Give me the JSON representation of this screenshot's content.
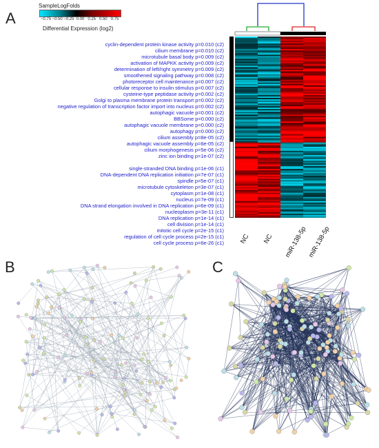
{
  "panels": {
    "a": "A",
    "b": "B",
    "c": "C"
  },
  "legend": {
    "title": "SampleLogFolds",
    "ticks": [
      "−0.75",
      "−0.50",
      "−0.25",
      "0.00",
      "0.25",
      "0.50",
      "0.75"
    ],
    "xlabel": "Differential Expression (log2)"
  },
  "terms_c2": [
    "cyclin-dependent protein kinase activity p=0.010 (c2)",
    "cilium membrane p=0.010 (c2)",
    "microtubule basal body p=0.009 (c2)",
    "activation of MAPKK activity p=0.009 (c2)",
    "determination of left/right symmetry p=0.009 (c2)",
    "smoothened signaling pathway p=0.008 (c2)",
    "photoreceptor cell maintenance p=0.007 (c2)",
    "cellular response to insulin stimulus p=0.007 (c2)",
    "cysteine-type peptidase activity p=0.002 (c2)",
    "Golgi to plasma membrane protein transport p=0.002 (c2)",
    "negative regulation of transcription factor import into nucleus p=0.002 (c2)",
    "autophagic vacuole p=0.001 (c2)",
    "BBSome p=0.000 (c2)",
    "autophagic vacuole membrane p=0.000 (c2)",
    "autophagy p=0.000 (c2)",
    "cilium assembly p=8e-05 (c2)",
    "autophagic vacuole assembly p=6e-05 (c2)",
    "cilium morphogenesis p=5e-06 (c2)",
    "zinc ion binding p=1e-07 (c2)"
  ],
  "terms_c1": [
    "single-stranded DNA binding p=1e-06 (c1)",
    "DNA-dependent DNA replication initiation p=7e-07 (c1)",
    "spindle p=5e-07 (c1)",
    "microtubule cytoskeleton p=3e-07 (c1)",
    "cytoplasm p=1e-08 (c1)",
    "nucleus p=7e-09 (c1)",
    "DNA strand elongation involved in DNA replication p=6e-09 (c1)",
    "nucleoplasm p=3e-11 (c1)",
    "DNA replication p=1e-14 (c1)",
    "cell division p=1e-14 (c1)",
    "mitotic cell cycle p=2e-15 (c1)",
    "regulation of cell cycle process p=2e-15 (c1)",
    "cell cycle process p=6e-26 (c1)"
  ],
  "columns": [
    "NC",
    "NC",
    "miR-138-5p",
    "miR-138-5p"
  ],
  "colors": {
    "term_text": "#2222cc",
    "cluster_c2_bar": "#000000",
    "dendro_top": "#2233cc",
    "dendro_nc": "#22aa33",
    "dendro_mir": "#dd2222",
    "heat_high": "#ff0000",
    "heat_low": "#00e5ff"
  }
}
